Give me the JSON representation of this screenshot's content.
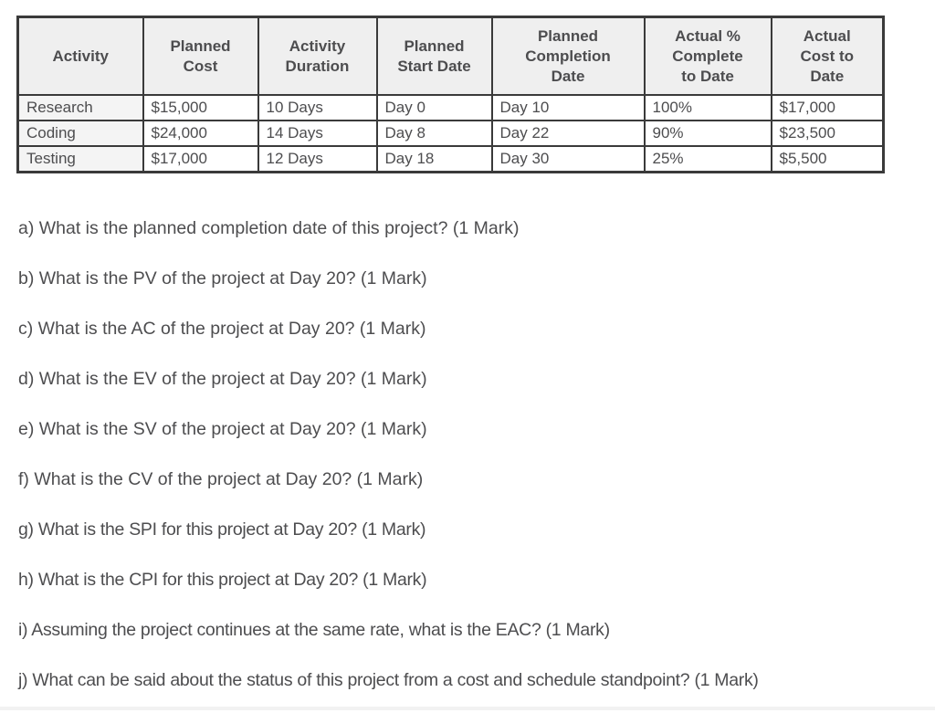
{
  "page": {
    "background": "#ffffff",
    "text_color": "#4d4d4f",
    "table_border_color": "#3a3a3a",
    "table_header_bg": "#efefef",
    "table_row_label_bg": "#f4f4f4"
  },
  "table": {
    "headers": [
      {
        "label": "Activity"
      },
      {
        "label": "Planned\nCost"
      },
      {
        "label": "Activity\nDuration"
      },
      {
        "label": "Planned\nStart Date"
      },
      {
        "label": "Planned\nCompletion\nDate"
      },
      {
        "label": "Actual %\nComplete\nto Date"
      },
      {
        "label": "Actual\nCost to\nDate"
      }
    ],
    "rows": [
      {
        "cells": [
          "Research",
          "$15,000",
          "10 Days",
          "Day 0",
          "Day 10",
          "100%",
          "$17,000"
        ]
      },
      {
        "cells": [
          "Coding",
          "$24,000",
          "14 Days",
          "Day 8",
          "Day 22",
          "90%",
          "$23,500"
        ]
      },
      {
        "cells": [
          "Testing",
          "$17,000",
          "12 Days",
          "Day 18",
          "Day 30",
          "25%",
          "$5,500"
        ]
      }
    ]
  },
  "questions": [
    {
      "id": "a",
      "text": "a) What is the planned completion date of this project? (1 Mark)"
    },
    {
      "id": "b",
      "text": "b) What is the PV of the project at Day 20? (1 Mark)"
    },
    {
      "id": "c",
      "text": "c) What is the AC of the project at Day 20? (1 Mark)"
    },
    {
      "id": "d",
      "text": "d) What is the EV of the project at Day 20? (1 Mark)"
    },
    {
      "id": "e",
      "text": "e) What is the SV of the project at Day 20? (1 Mark)"
    },
    {
      "id": "f",
      "text": "f) What is the CV of the project at Day 20? (1 Mark)"
    },
    {
      "id": "g",
      "text": "g) What is the SPI for this project at Day 20? (1 Mark)"
    },
    {
      "id": "h",
      "text": "h) What is the CPI for this project at Day 20? (1 Mark)"
    },
    {
      "id": "i",
      "text": "i) Assuming the project continues at the same rate, what is the EAC? (1 Mark)"
    },
    {
      "id": "j",
      "text": "j) What can be said about the status of this project from a cost and schedule standpoint? (1 Mark)"
    }
  ]
}
